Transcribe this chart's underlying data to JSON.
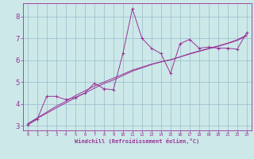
{
  "xlabel": "Windchill (Refroidissement éolien,°C)",
  "background_color": "#cce8e8",
  "grid_color": "#99bbcc",
  "line_color": "#993399",
  "xlim": [
    -0.5,
    23.5
  ],
  "ylim": [
    2.8,
    8.6
  ],
  "xticks": [
    0,
    1,
    2,
    3,
    4,
    5,
    6,
    7,
    8,
    9,
    10,
    11,
    12,
    13,
    14,
    15,
    16,
    17,
    18,
    19,
    20,
    21,
    22,
    23
  ],
  "yticks": [
    3,
    4,
    5,
    6,
    7,
    8
  ],
  "x": [
    0,
    1,
    2,
    3,
    4,
    5,
    6,
    7,
    8,
    9,
    10,
    11,
    12,
    13,
    14,
    15,
    16,
    17,
    18,
    19,
    20,
    21,
    22,
    23
  ],
  "y_line1": [
    3.05,
    3.3,
    4.35,
    4.35,
    4.2,
    4.3,
    4.5,
    4.95,
    4.7,
    4.65,
    6.3,
    8.35,
    7.0,
    6.55,
    6.3,
    5.4,
    6.75,
    6.95,
    6.55,
    6.6,
    6.55,
    6.55,
    6.5,
    7.25
  ],
  "y_regression1": [
    3.1,
    3.37,
    3.63,
    3.9,
    4.12,
    4.38,
    4.6,
    4.82,
    5.0,
    5.18,
    5.36,
    5.55,
    5.68,
    5.82,
    5.93,
    6.02,
    6.15,
    6.28,
    6.4,
    6.52,
    6.63,
    6.76,
    6.9,
    7.1
  ],
  "y_regression2": [
    3.1,
    3.34,
    3.58,
    3.82,
    4.05,
    4.28,
    4.5,
    4.72,
    4.93,
    5.1,
    5.3,
    5.5,
    5.65,
    5.8,
    5.92,
    6.02,
    6.15,
    6.3,
    6.42,
    6.54,
    6.65,
    6.78,
    6.93,
    7.15
  ]
}
